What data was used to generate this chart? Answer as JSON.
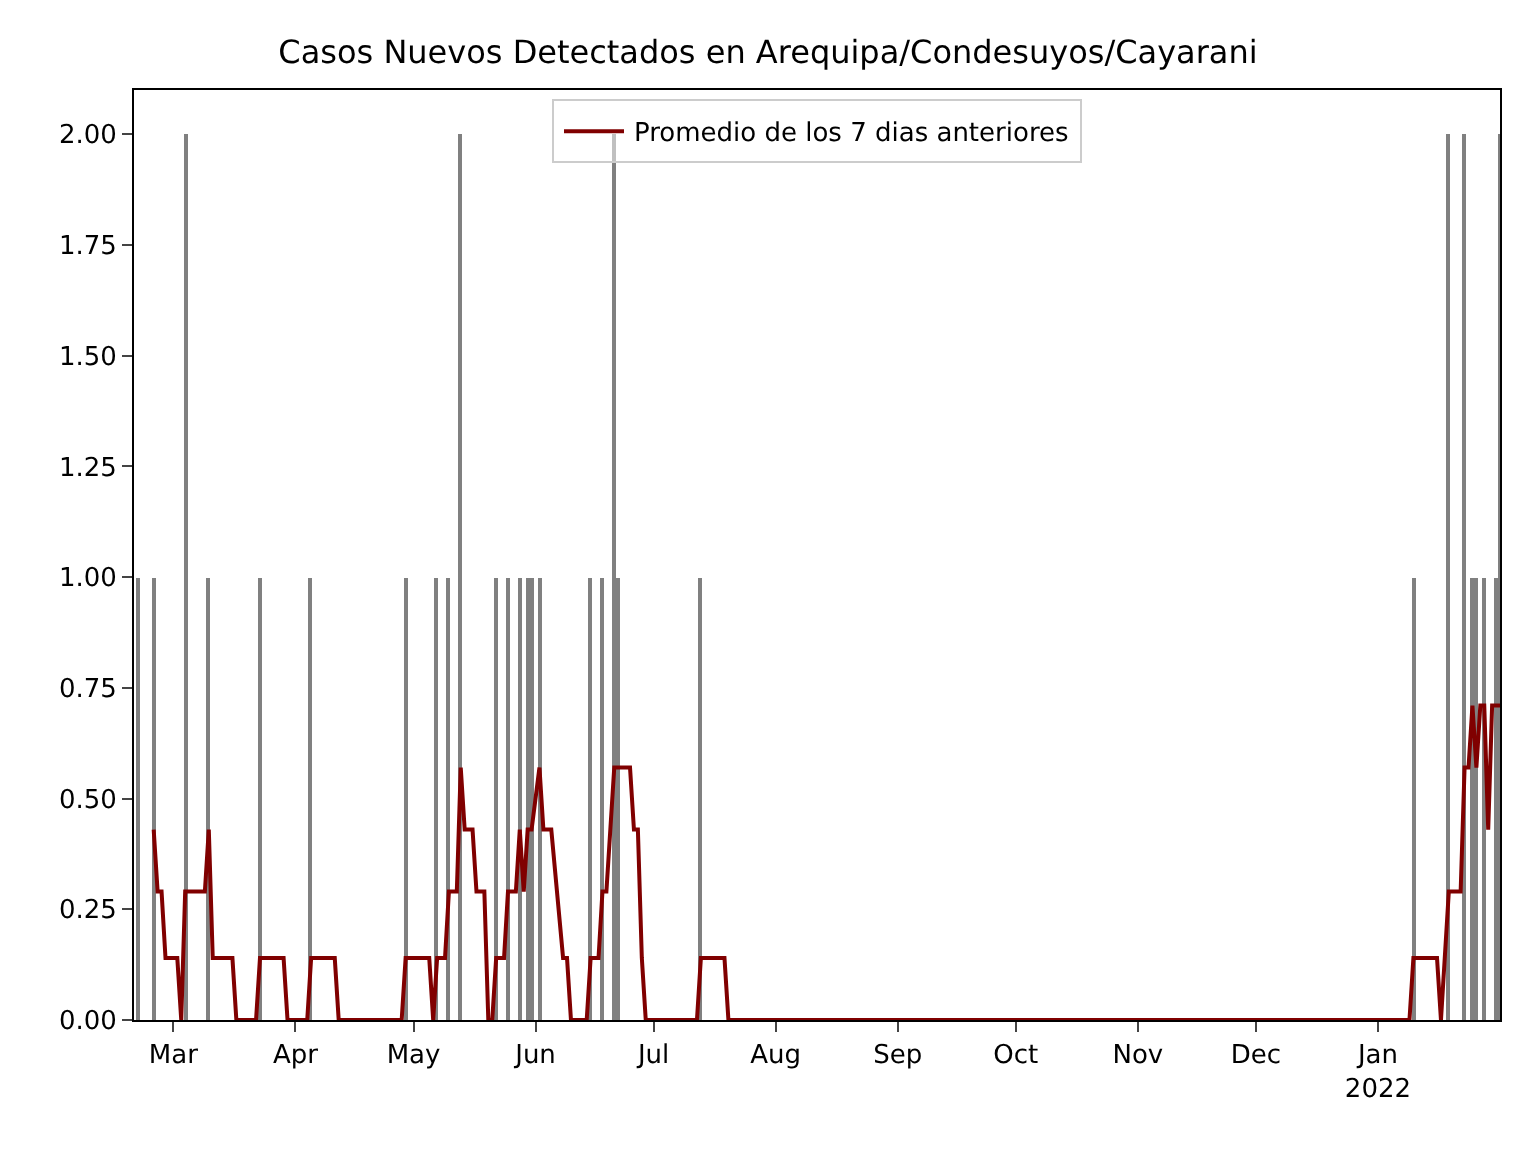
{
  "chart_data": {
    "type": "bar",
    "title": "Casos Nuevos Detectados en Arequipa/Condesuyos/Cayarani",
    "xlim": [
      "2021-02-19",
      "2022-02-01"
    ],
    "xticks": [
      {
        "value": "2021-03-01",
        "label": "Mar"
      },
      {
        "value": "2021-04-01",
        "label": "Apr"
      },
      {
        "value": "2021-05-01",
        "label": "May"
      },
      {
        "value": "2021-06-01",
        "label": "Jun"
      },
      {
        "value": "2021-07-01",
        "label": "Jul"
      },
      {
        "value": "2021-08-01",
        "label": "Aug"
      },
      {
        "value": "2021-09-01",
        "label": "Sep"
      },
      {
        "value": "2021-10-01",
        "label": "Oct"
      },
      {
        "value": "2021-11-01",
        "label": "Nov"
      },
      {
        "value": "2021-12-01",
        "label": "Dec"
      },
      {
        "value": "2022-01-01",
        "label": "Jan\n2022"
      }
    ],
    "ylim": [
      0,
      2.1
    ],
    "yticks": [
      {
        "value": 0,
        "label": "0.00"
      },
      {
        "value": 0.25,
        "label": "0.25"
      },
      {
        "value": 0.5,
        "label": "0.50"
      },
      {
        "value": 0.75,
        "label": "0.75"
      },
      {
        "value": 1,
        "label": "1.00"
      },
      {
        "value": 1.25,
        "label": "1.25"
      },
      {
        "value": 1.5,
        "label": "1.50"
      },
      {
        "value": 1.75,
        "label": "1.75"
      },
      {
        "value": 2,
        "label": "2.00"
      }
    ],
    "legend": "top",
    "series": [
      {
        "color": "#808080",
        "x": [
          "2021-02-20",
          "2021-02-24",
          "2021-03-04",
          "2021-03-10",
          "2021-03-23",
          "2021-04-05",
          "2021-04-29",
          "2021-05-07",
          "2021-05-10",
          "2021-05-13",
          "2021-05-22",
          "2021-05-25",
          "2021-05-28",
          "2021-05-30",
          "2021-05-31",
          "2021-06-02",
          "2021-06-15",
          "2021-06-18",
          "2021-06-21",
          "2021-06-22",
          "2021-07-13",
          "2022-01-10",
          "2022-01-19",
          "2022-01-23",
          "2022-01-25",
          "2022-01-26",
          "2022-01-28",
          "2022-01-31",
          "2022-02-01"
        ],
        "values": [
          1,
          1,
          2,
          1,
          1,
          1,
          1,
          1,
          1,
          2,
          1,
          1,
          1,
          1,
          1,
          1,
          1,
          1,
          2,
          1,
          1,
          1,
          2,
          2,
          1,
          1,
          1,
          1,
          2
        ]
      },
      {
        "type": "line",
        "name": "Promedio de los 7 dias anteriores",
        "color": "#800000",
        "x": [
          "2021-02-24",
          "2021-02-25",
          "2021-02-26",
          "2021-02-27",
          "2021-03-02",
          "2021-03-03",
          "2021-03-04",
          "2021-03-09",
          "2021-03-10",
          "2021-03-11",
          "2021-03-16",
          "2021-03-17",
          "2021-03-22",
          "2021-03-23",
          "2021-03-29",
          "2021-03-30",
          "2021-04-04",
          "2021-04-05",
          "2021-04-11",
          "2021-04-12",
          "2021-04-28",
          "2021-04-29",
          "2021-05-05",
          "2021-05-06",
          "2021-05-07",
          "2021-05-09",
          "2021-05-10",
          "2021-05-12",
          "2021-05-13",
          "2021-05-14",
          "2021-05-16",
          "2021-05-17",
          "2021-05-19",
          "2021-05-20",
          "2021-05-21",
          "2021-05-22",
          "2021-05-24",
          "2021-05-25",
          "2021-05-27",
          "2021-05-28",
          "2021-05-29",
          "2021-05-30",
          "2021-05-31",
          "2021-06-02",
          "2021-06-03",
          "2021-06-05",
          "2021-06-08",
          "2021-06-09",
          "2021-06-10",
          "2021-06-14",
          "2021-06-15",
          "2021-06-17",
          "2021-06-18",
          "2021-06-19",
          "2021-06-21",
          "2021-06-25",
          "2021-06-26",
          "2021-06-27",
          "2021-06-28",
          "2021-06-29",
          "2021-07-12",
          "2021-07-13",
          "2021-07-19",
          "2021-07-20",
          "2022-01-09",
          "2022-01-10",
          "2022-01-16",
          "2022-01-17",
          "2022-01-19",
          "2022-01-22",
          "2022-01-23",
          "2022-01-24",
          "2022-01-25",
          "2022-01-26",
          "2022-01-27",
          "2022-01-28",
          "2022-01-29",
          "2022-01-30",
          "2022-02-01"
        ],
        "values": [
          0.43,
          0.29,
          0.29,
          0.14,
          0.14,
          0,
          0.29,
          0.29,
          0.43,
          0.14,
          0.14,
          0,
          0,
          0.14,
          0.14,
          0,
          0,
          0.14,
          0.14,
          0,
          0,
          0.14,
          0.14,
          0,
          0.14,
          0.14,
          0.29,
          0.29,
          0.57,
          0.43,
          0.43,
          0.29,
          0.29,
          0,
          0,
          0.14,
          0.14,
          0.29,
          0.29,
          0.43,
          0.29,
          0.43,
          0.43,
          0.57,
          0.43,
          0.43,
          0.14,
          0.14,
          0,
          0,
          0.14,
          0.14,
          0.29,
          0.29,
          0.57,
          0.57,
          0.43,
          0.43,
          0.14,
          0,
          0,
          0.14,
          0.14,
          0,
          0,
          0.14,
          0.14,
          0,
          0.29,
          0.29,
          0.57,
          0.57,
          0.71,
          0.57,
          0.71,
          0.71,
          0.43,
          0.71,
          0.71
        ]
      }
    ]
  }
}
